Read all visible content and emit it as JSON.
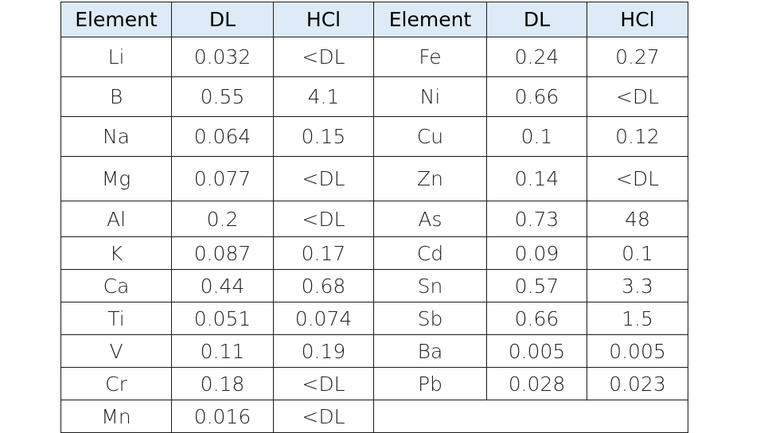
{
  "table": {
    "headers": [
      "Element",
      "DL",
      "HCl",
      "Element",
      "DL",
      "HCl"
    ],
    "rows": [
      [
        "Li",
        "0.032",
        "<DL",
        "Fe",
        "0.24",
        "0.27"
      ],
      [
        "B",
        "0.55",
        "4.1",
        "Ni",
        "0.66",
        "<DL"
      ],
      [
        "Na",
        "0.064",
        "0.15",
        "Cu",
        "0.1",
        "0.12"
      ],
      [
        "Mg",
        "0.077",
        "<DL",
        "Zn",
        "0.14",
        "<DL"
      ],
      [
        "Al",
        "0.2",
        "<DL",
        "As",
        "0.73",
        "48"
      ],
      [
        "K",
        "0.087",
        "0.17",
        "Cd",
        "0.09",
        "0.1"
      ],
      [
        "Ca",
        "0.44",
        "0.68",
        "Sn",
        "0.57",
        "3.3"
      ],
      [
        "Ti",
        "0.051",
        "0.074",
        "Sb",
        "0.66",
        "1.5"
      ],
      [
        "V",
        "0.11",
        "0.19",
        "Ba",
        "0.005",
        "0.005"
      ],
      [
        "Cr",
        "0.18",
        "<DL",
        "Pb",
        "0.028",
        "0.023"
      ],
      [
        "Mn",
        "0.016",
        "<DL",
        "",
        "",
        ""
      ]
    ]
  }
}
